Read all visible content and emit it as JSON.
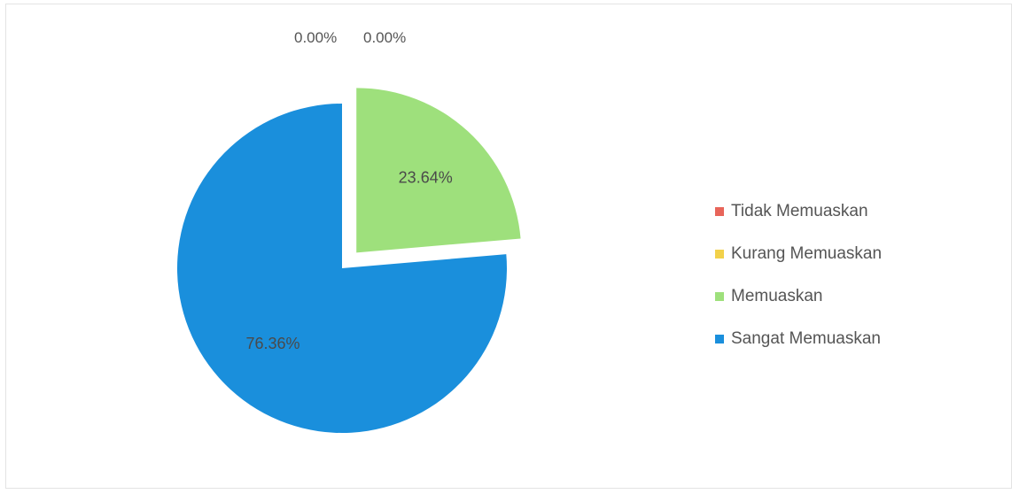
{
  "chart_data": {
    "type": "pie",
    "title": "",
    "categories": [
      "Tidak Memuaskan",
      "Kurang Memuaskan",
      "Memuaskan",
      "Sangat Memuaskan"
    ],
    "values": [
      0.0,
      0.0,
      23.64,
      76.36
    ],
    "data_labels": [
      "0.00%",
      "0.00%",
      "23.64%",
      "76.36%"
    ],
    "colors": [
      "#e8655a",
      "#f2d14a",
      "#9ee07c",
      "#1a8fdc"
    ],
    "exploded": [
      "Memuaskan"
    ],
    "legend_position": "right"
  }
}
